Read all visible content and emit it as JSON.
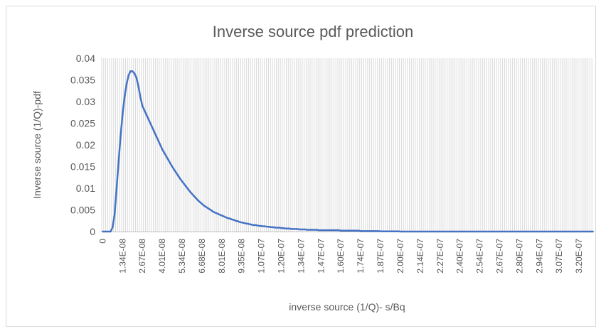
{
  "chart_data": {
    "type": "line",
    "title": "Inverse source pdf prediction",
    "x_label": "inverse source (1/Q)- s/Bq",
    "y_label": "Inverse source (1/Q)-pdf",
    "categories": [
      "0",
      null,
      null,
      null,
      null,
      null,
      null,
      null,
      null,
      null,
      "1.34E-08",
      null,
      null,
      null,
      null,
      null,
      null,
      null,
      null,
      null,
      "2.67E-08",
      null,
      null,
      null,
      null,
      null,
      null,
      null,
      null,
      null,
      "4.01E-08",
      null,
      null,
      null,
      null,
      null,
      null,
      null,
      null,
      null,
      "5.34E-08",
      null,
      null,
      null,
      null,
      null,
      null,
      null,
      null,
      null,
      "6.68E-08",
      null,
      null,
      null,
      null,
      null,
      null,
      null,
      null,
      null,
      "8.01E-08",
      null,
      null,
      null,
      null,
      null,
      null,
      null,
      null,
      null,
      "9.35E-08",
      null,
      null,
      null,
      null,
      null,
      null,
      null,
      null,
      null,
      "1.07E-07",
      null,
      null,
      null,
      null,
      null,
      null,
      null,
      null,
      null,
      "1.20E-07",
      null,
      null,
      null,
      null,
      null,
      null,
      null,
      null,
      null,
      "1.34E-07",
      null,
      null,
      null,
      null,
      null,
      null,
      null,
      null,
      null,
      "1.47E-07",
      null,
      null,
      null,
      null,
      null,
      null,
      null,
      null,
      null,
      "1.60E-07",
      null,
      null,
      null,
      null,
      null,
      null,
      null,
      null,
      null,
      "1.74E-07",
      null,
      null,
      null,
      null,
      null,
      null,
      null,
      null,
      null,
      "1.87E-07",
      null,
      null,
      null,
      null,
      null,
      null,
      null,
      null,
      null,
      "2.00E-07",
      null,
      null,
      null,
      null,
      null,
      null,
      null,
      null,
      null,
      "2.14E-07",
      null,
      null,
      null,
      null,
      null,
      null,
      null,
      null,
      null,
      "2.27E-07",
      null,
      null,
      null,
      null,
      null,
      null,
      null,
      null,
      null,
      "2.40E-07",
      null,
      null,
      null,
      null,
      null,
      null,
      null,
      null,
      null,
      "2.54E-07",
      null,
      null,
      null,
      null,
      null,
      null,
      null,
      null,
      null,
      "2.67E-07",
      null,
      null,
      null,
      null,
      null,
      null,
      null,
      null,
      null,
      "2.80E-07",
      null,
      null,
      null,
      null,
      null,
      null,
      null,
      null,
      null,
      "2.94E-07",
      null,
      null,
      null,
      null,
      null,
      null,
      null,
      null,
      null,
      "3.07E-07",
      null,
      null,
      null,
      null,
      null,
      null,
      null,
      null,
      null,
      "3.20E-07",
      null,
      null,
      null,
      null,
      null,
      null,
      null
    ],
    "values": [
      0,
      0,
      0,
      0,
      0,
      0.001,
      0.004,
      0.01,
      0.016,
      0.022,
      0.027,
      0.031,
      0.034,
      0.036,
      0.037,
      0.037,
      0.0365,
      0.0355,
      0.0335,
      0.031,
      0.029,
      0.028,
      0.027,
      0.026,
      0.025,
      0.024,
      0.023,
      0.022,
      0.021,
      0.02,
      0.019,
      0.0182,
      0.0174,
      0.0166,
      0.0158,
      0.015,
      0.0143,
      0.0136,
      0.0129,
      0.0122,
      0.0116,
      0.011,
      0.0104,
      0.0098,
      0.0092,
      0.0087,
      0.0082,
      0.0077,
      0.0072,
      0.0068,
      0.0064,
      0.006,
      0.0057,
      0.0054,
      0.0051,
      0.0048,
      0.0045,
      0.0043,
      0.0041,
      0.0039,
      0.0037,
      0.0035,
      0.0033,
      0.0031,
      0.003,
      0.0028,
      0.0027,
      0.0025,
      0.0024,
      0.0022,
      0.0021,
      0.002,
      0.0019,
      0.0018,
      0.0017,
      0.0016,
      0.0015,
      0.0015,
      0.0014,
      0.0013,
      0.0013,
      0.0012,
      0.0012,
      0.0011,
      0.0011,
      0.001,
      0.001,
      0.0009,
      0.0009,
      0.0009,
      0.0008,
      0.0008,
      0.0007,
      0.0007,
      0.0007,
      0.0006,
      0.0006,
      0.0006,
      0.0006,
      0.0005,
      0.0005,
      0.0005,
      0.0005,
      0.0004,
      0.0004,
      0.0004,
      0.0004,
      0.0004,
      0.0004,
      0.0003,
      0.0003,
      0.0003,
      0.0003,
      0.0003,
      0.0003,
      0.0003,
      0.0003,
      0.0003,
      0.0003,
      0.0003,
      0.0002,
      0.0002,
      0.0002,
      0.0002,
      0.0002,
      0.0002,
      0.0002,
      0.0002,
      0.0002,
      0.0002,
      0.0001,
      0.0001,
      0.0001,
      0.0001,
      0.0001,
      0.0001,
      0.0001,
      0.0001,
      0.0001,
      0.0001,
      5e-05,
      5e-05,
      5e-05,
      5e-05,
      5e-05,
      5e-05,
      5e-05,
      5e-05,
      5e-05,
      5e-05,
      0,
      0,
      0,
      0,
      0,
      0,
      0,
      0,
      0,
      0,
      0,
      0,
      0,
      0,
      0,
      0,
      0,
      0,
      0,
      0,
      0,
      0,
      0,
      0,
      0,
      0,
      0,
      0,
      0,
      0,
      0,
      0,
      0,
      0,
      0,
      0,
      0,
      0,
      0,
      0,
      0,
      0,
      0,
      0,
      0,
      0,
      0,
      0,
      0,
      0,
      0,
      0,
      0,
      0,
      0,
      0,
      0,
      0,
      0,
      0,
      0,
      0,
      0,
      0,
      0,
      0,
      0,
      0,
      0,
      0,
      0,
      0,
      0,
      0,
      0,
      0,
      0,
      0,
      0,
      0,
      0,
      0,
      0,
      0,
      0,
      0,
      0,
      0,
      0,
      0,
      0,
      0,
      0,
      0,
      0,
      0,
      0,
      0
    ],
    "color": "#4472c4",
    "ylim": [
      0,
      0.04
    ],
    "yticks": [
      0,
      0.005,
      0.01,
      0.015,
      0.02,
      0.025,
      0.03,
      0.035,
      0.04
    ],
    "x_grid": true,
    "y_grid": false
  }
}
